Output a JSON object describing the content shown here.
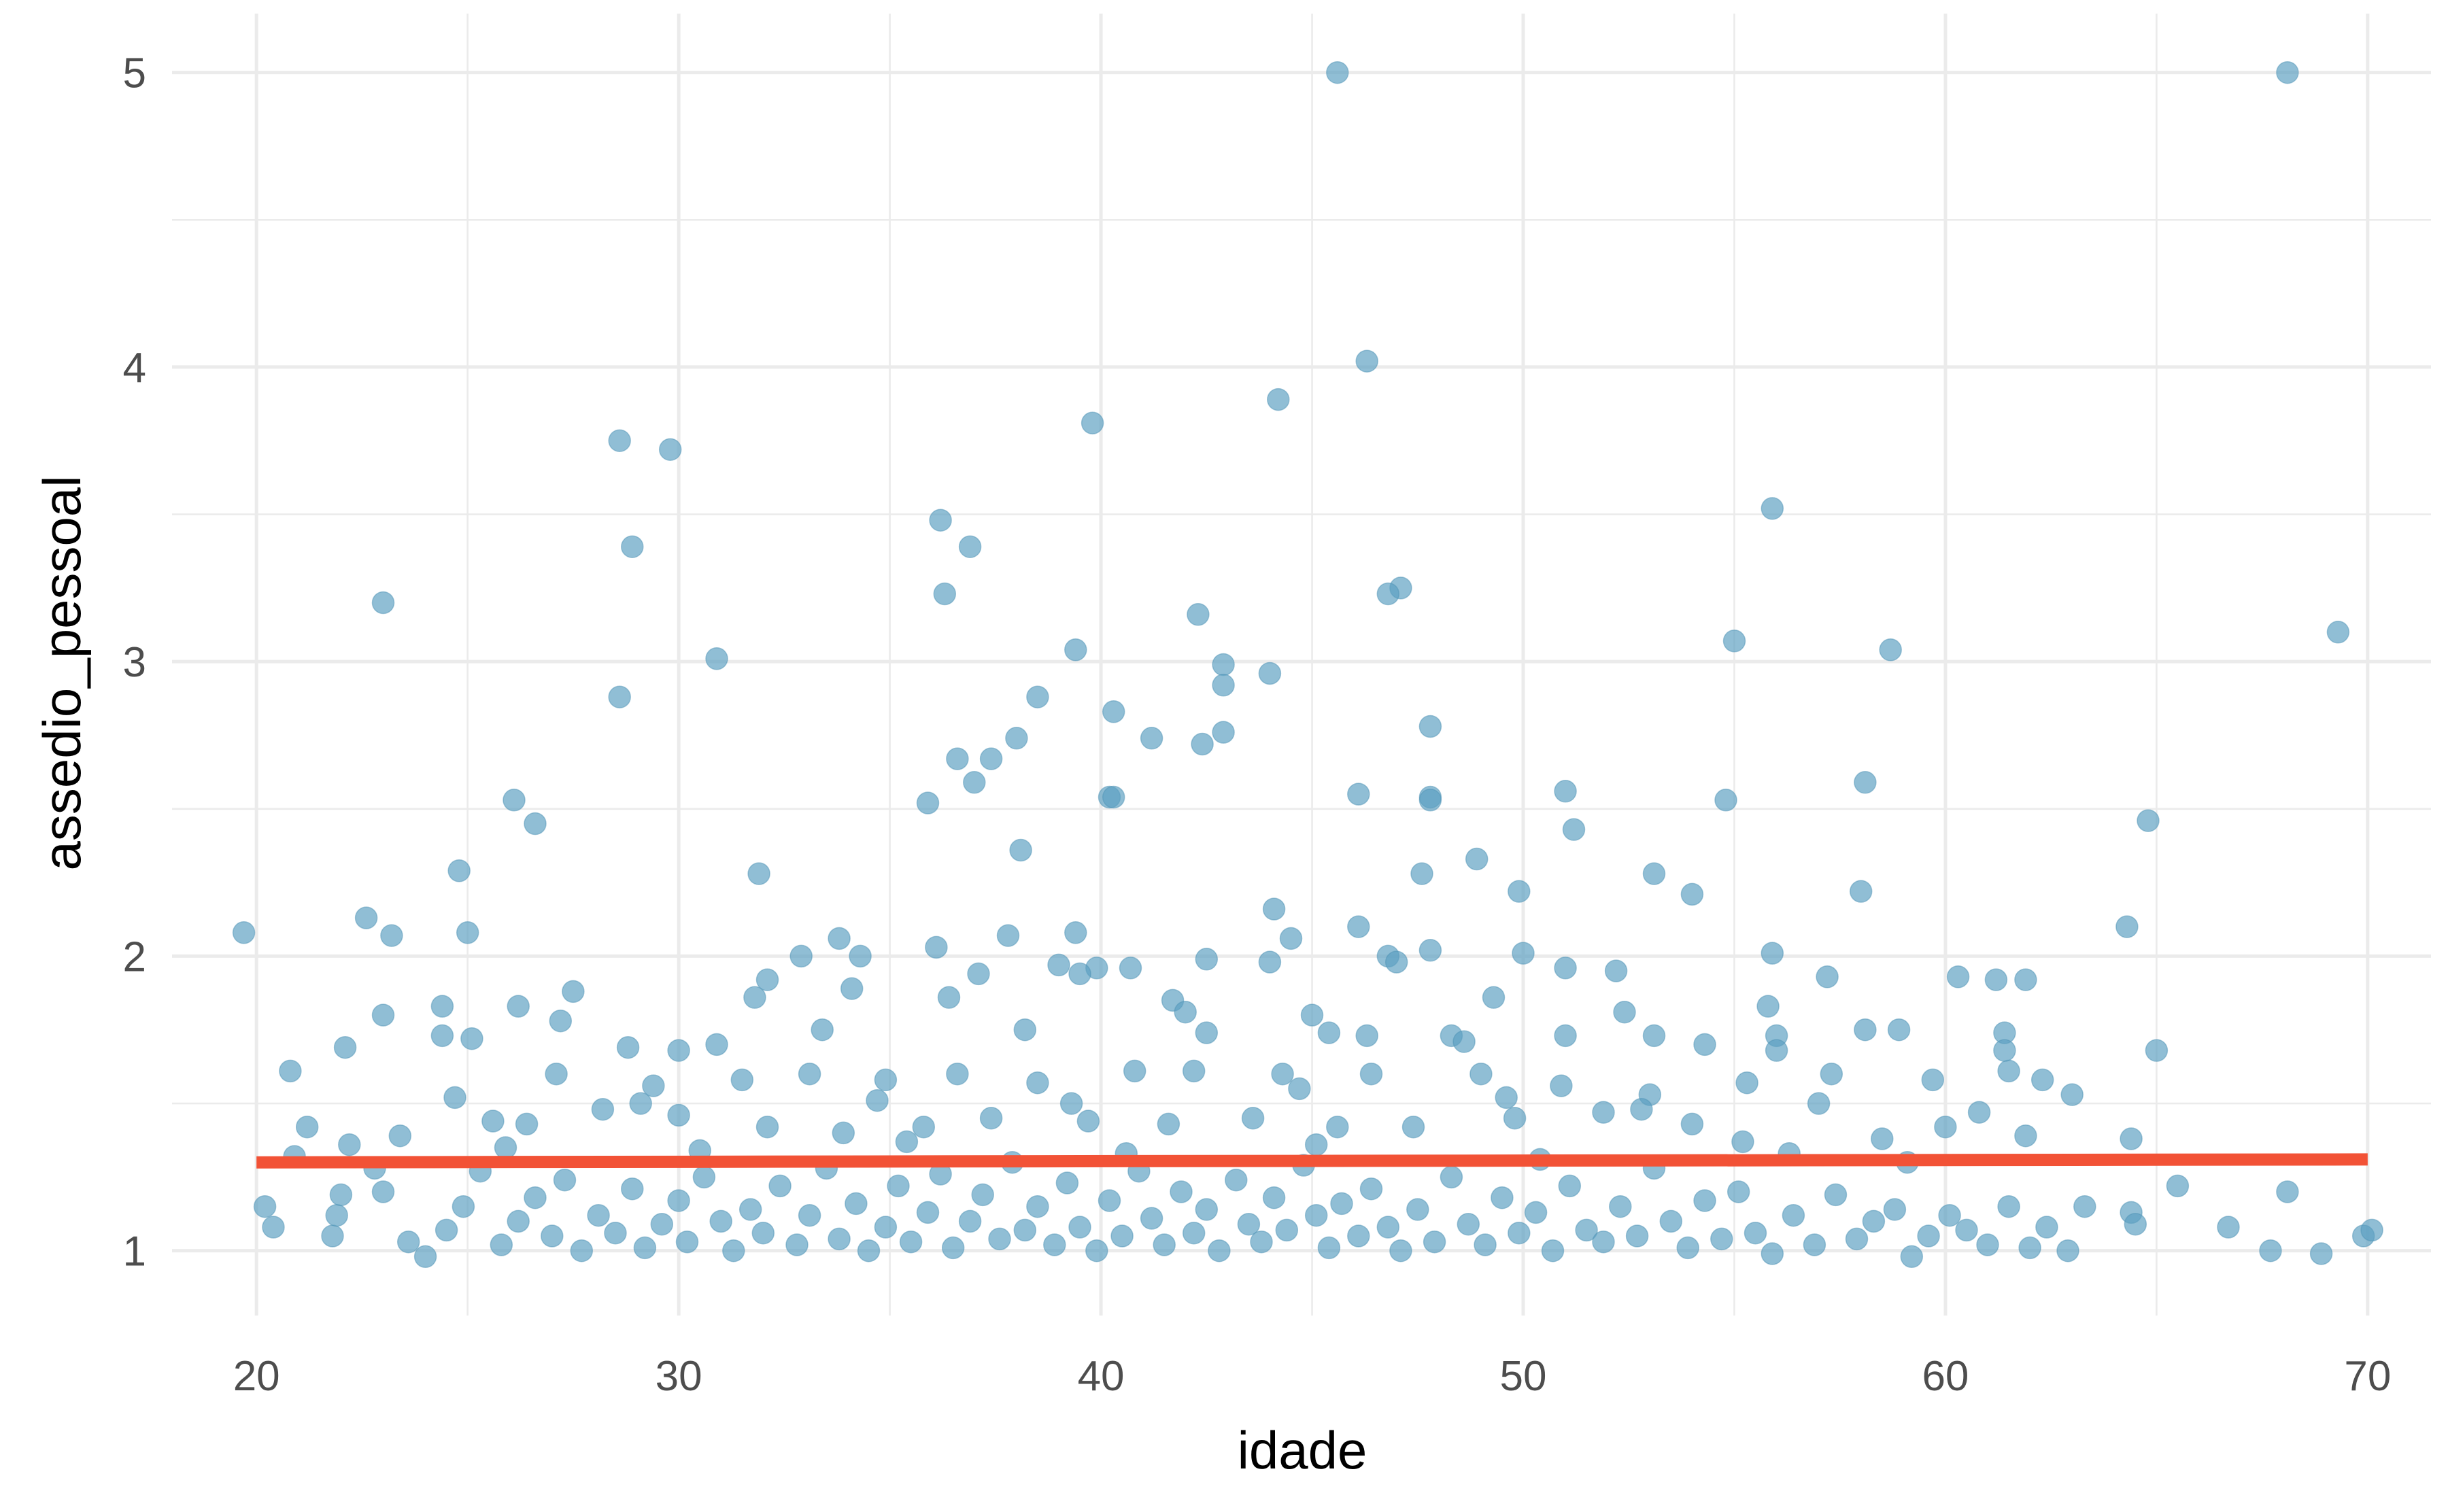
{
  "chart_data": {
    "type": "scatter",
    "xlabel": "idade",
    "ylabel": "assedio_pessoal",
    "xlim": [
      18,
      71.5
    ],
    "ylim": [
      0.78,
      5.2
    ],
    "x_ticks": [
      20,
      30,
      40,
      50,
      60,
      70
    ],
    "y_ticks": [
      1,
      2,
      3,
      4,
      5
    ],
    "grid": true,
    "point_color": "#5b9fc1",
    "trend_color": "#f25236",
    "trend_line": {
      "x": [
        20,
        70
      ],
      "y": [
        1.3,
        1.31
      ]
    },
    "series": [
      {
        "values": [
          [
            45.6,
            5.0
          ],
          [
            68.1,
            5.0
          ],
          [
            46.3,
            4.02
          ],
          [
            44.2,
            3.89
          ],
          [
            39.8,
            3.81
          ],
          [
            28.6,
            3.75
          ],
          [
            29.8,
            3.72
          ],
          [
            55.9,
            3.52
          ],
          [
            36.2,
            3.48
          ],
          [
            28.9,
            3.39
          ],
          [
            36.9,
            3.39
          ],
          [
            47.1,
            3.25
          ],
          [
            36.3,
            3.23
          ],
          [
            46.8,
            3.23
          ],
          [
            23.0,
            3.2
          ],
          [
            42.3,
            3.16
          ],
          [
            69.3,
            3.1
          ],
          [
            55.0,
            3.07
          ],
          [
            39.4,
            3.04
          ],
          [
            58.7,
            3.04
          ],
          [
            30.9,
            3.01
          ],
          [
            42.9,
            2.99
          ],
          [
            44.0,
            2.96
          ],
          [
            42.9,
            2.92
          ],
          [
            28.6,
            2.88
          ],
          [
            38.5,
            2.88
          ],
          [
            40.3,
            2.83
          ],
          [
            47.8,
            2.78
          ],
          [
            42.9,
            2.76
          ],
          [
            38.0,
            2.74
          ],
          [
            41.2,
            2.74
          ],
          [
            42.4,
            2.72
          ],
          [
            36.6,
            2.67
          ],
          [
            37.4,
            2.67
          ],
          [
            37.0,
            2.59
          ],
          [
            58.1,
            2.59
          ],
          [
            51.0,
            2.56
          ],
          [
            46.1,
            2.55
          ],
          [
            40.2,
            2.54
          ],
          [
            40.3,
            2.54
          ],
          [
            47.8,
            2.54
          ],
          [
            47.8,
            2.53
          ],
          [
            26.1,
            2.53
          ],
          [
            54.8,
            2.53
          ],
          [
            35.9,
            2.52
          ],
          [
            64.8,
            2.46
          ],
          [
            26.6,
            2.45
          ],
          [
            51.2,
            2.43
          ],
          [
            38.1,
            2.36
          ],
          [
            48.9,
            2.33
          ],
          [
            24.8,
            2.29
          ],
          [
            47.6,
            2.28
          ],
          [
            31.9,
            2.28
          ],
          [
            53.1,
            2.28
          ],
          [
            49.9,
            2.22
          ],
          [
            58.0,
            2.22
          ],
          [
            54.0,
            2.21
          ],
          [
            44.1,
            2.16
          ],
          [
            22.6,
            2.13
          ],
          [
            64.3,
            2.1
          ],
          [
            46.1,
            2.1
          ],
          [
            19.7,
            2.08
          ],
          [
            25.0,
            2.08
          ],
          [
            39.4,
            2.08
          ],
          [
            23.2,
            2.07
          ],
          [
            44.5,
            2.06
          ],
          [
            33.8,
            2.06
          ],
          [
            37.8,
            2.07
          ],
          [
            36.1,
            2.03
          ],
          [
            47.8,
            2.02
          ],
          [
            55.9,
            2.01
          ],
          [
            50.0,
            2.01
          ],
          [
            34.3,
            2.0
          ],
          [
            32.9,
            2.0
          ],
          [
            42.5,
            1.99
          ],
          [
            46.8,
            2.0
          ],
          [
            44.0,
            1.98
          ],
          [
            47.0,
            1.98
          ],
          [
            40.7,
            1.96
          ],
          [
            51.0,
            1.96
          ],
          [
            39.0,
            1.97
          ],
          [
            39.9,
            1.96
          ],
          [
            52.2,
            1.95
          ],
          [
            39.5,
            1.94
          ],
          [
            57.2,
            1.93
          ],
          [
            60.3,
            1.93
          ],
          [
            61.2,
            1.92
          ],
          [
            61.9,
            1.92
          ],
          [
            49.3,
            1.86
          ],
          [
            26.2,
            1.83
          ],
          [
            31.8,
            1.86
          ],
          [
            36.4,
            1.86
          ],
          [
            41.7,
            1.85
          ],
          [
            24.4,
            1.83
          ],
          [
            24.4,
            1.73
          ],
          [
            23.0,
            1.8
          ],
          [
            27.2,
            1.78
          ],
          [
            30.9,
            1.7
          ],
          [
            33.4,
            1.75
          ],
          [
            38.2,
            1.75
          ],
          [
            42.5,
            1.74
          ],
          [
            45.4,
            1.74
          ],
          [
            46.3,
            1.73
          ],
          [
            48.3,
            1.73
          ],
          [
            51.0,
            1.73
          ],
          [
            53.1,
            1.73
          ],
          [
            56.0,
            1.73
          ],
          [
            58.1,
            1.75
          ],
          [
            58.9,
            1.75
          ],
          [
            61.4,
            1.74
          ],
          [
            65.0,
            1.68
          ],
          [
            22.1,
            1.69
          ],
          [
            20.8,
            1.61
          ],
          [
            25.1,
            1.72
          ],
          [
            28.8,
            1.69
          ],
          [
            30.0,
            1.68
          ],
          [
            27.1,
            1.6
          ],
          [
            29.4,
            1.56
          ],
          [
            31.5,
            1.58
          ],
          [
            33.1,
            1.6
          ],
          [
            34.9,
            1.58
          ],
          [
            36.6,
            1.6
          ],
          [
            38.5,
            1.57
          ],
          [
            40.8,
            1.61
          ],
          [
            42.2,
            1.61
          ],
          [
            44.3,
            1.6
          ],
          [
            46.4,
            1.6
          ],
          [
            49.0,
            1.6
          ],
          [
            50.9,
            1.56
          ],
          [
            53.0,
            1.53
          ],
          [
            55.3,
            1.57
          ],
          [
            57.3,
            1.6
          ],
          [
            59.7,
            1.58
          ],
          [
            61.5,
            1.61
          ],
          [
            62.3,
            1.58
          ],
          [
            63.0,
            1.53
          ],
          [
            21.2,
            1.42
          ],
          [
            22.2,
            1.36
          ],
          [
            23.4,
            1.39
          ],
          [
            25.6,
            1.44
          ],
          [
            26.4,
            1.43
          ],
          [
            28.2,
            1.48
          ],
          [
            30.0,
            1.46
          ],
          [
            32.1,
            1.42
          ],
          [
            33.9,
            1.4
          ],
          [
            35.8,
            1.42
          ],
          [
            37.4,
            1.45
          ],
          [
            39.7,
            1.44
          ],
          [
            41.6,
            1.43
          ],
          [
            43.6,
            1.45
          ],
          [
            45.6,
            1.42
          ],
          [
            47.4,
            1.42
          ],
          [
            49.8,
            1.45
          ],
          [
            51.9,
            1.47
          ],
          [
            54.0,
            1.43
          ],
          [
            56.3,
            1.33
          ],
          [
            58.5,
            1.38
          ],
          [
            60.0,
            1.42
          ],
          [
            61.9,
            1.39
          ],
          [
            64.4,
            1.38
          ],
          [
            20.2,
            1.15
          ],
          [
            20.4,
            1.08
          ],
          [
            21.8,
            1.05
          ],
          [
            21.9,
            1.12
          ],
          [
            22.0,
            1.19
          ],
          [
            22.8,
            1.28
          ],
          [
            23.0,
            1.2
          ],
          [
            23.6,
            1.03
          ],
          [
            24.0,
            0.98
          ],
          [
            24.5,
            1.07
          ],
          [
            24.9,
            1.15
          ],
          [
            25.3,
            1.27
          ],
          [
            25.8,
            1.02
          ],
          [
            26.2,
            1.1
          ],
          [
            26.6,
            1.18
          ],
          [
            27.0,
            1.05
          ],
          [
            27.3,
            1.24
          ],
          [
            27.7,
            1.0
          ],
          [
            28.1,
            1.12
          ],
          [
            28.5,
            1.06
          ],
          [
            28.9,
            1.21
          ],
          [
            29.2,
            1.01
          ],
          [
            29.6,
            1.09
          ],
          [
            30.0,
            1.17
          ],
          [
            30.2,
            1.03
          ],
          [
            30.6,
            1.25
          ],
          [
            31.0,
            1.1
          ],
          [
            31.3,
            1.0
          ],
          [
            31.7,
            1.14
          ],
          [
            32.0,
            1.06
          ],
          [
            32.4,
            1.22
          ],
          [
            32.8,
            1.02
          ],
          [
            33.1,
            1.12
          ],
          [
            33.5,
            1.28
          ],
          [
            33.8,
            1.04
          ],
          [
            34.2,
            1.16
          ],
          [
            34.5,
            1.0
          ],
          [
            34.9,
            1.08
          ],
          [
            35.2,
            1.22
          ],
          [
            35.5,
            1.03
          ],
          [
            35.9,
            1.13
          ],
          [
            36.2,
            1.26
          ],
          [
            36.5,
            1.01
          ],
          [
            36.9,
            1.1
          ],
          [
            37.2,
            1.19
          ],
          [
            37.6,
            1.04
          ],
          [
            37.9,
            1.3
          ],
          [
            38.2,
            1.07
          ],
          [
            38.5,
            1.15
          ],
          [
            38.9,
            1.02
          ],
          [
            39.2,
            1.23
          ],
          [
            39.5,
            1.08
          ],
          [
            39.9,
            1.0
          ],
          [
            40.2,
            1.17
          ],
          [
            40.5,
            1.05
          ],
          [
            40.9,
            1.27
          ],
          [
            41.2,
            1.11
          ],
          [
            41.5,
            1.02
          ],
          [
            41.9,
            1.2
          ],
          [
            42.2,
            1.06
          ],
          [
            42.5,
            1.14
          ],
          [
            42.8,
            1.0
          ],
          [
            43.2,
            1.24
          ],
          [
            43.5,
            1.09
          ],
          [
            43.8,
            1.03
          ],
          [
            44.1,
            1.18
          ],
          [
            44.4,
            1.07
          ],
          [
            44.8,
            1.29
          ],
          [
            45.1,
            1.12
          ],
          [
            45.4,
            1.01
          ],
          [
            45.7,
            1.16
          ],
          [
            46.1,
            1.05
          ],
          [
            46.4,
            1.21
          ],
          [
            46.8,
            1.08
          ],
          [
            47.1,
            1.0
          ],
          [
            47.5,
            1.14
          ],
          [
            47.9,
            1.03
          ],
          [
            48.3,
            1.25
          ],
          [
            48.7,
            1.09
          ],
          [
            49.1,
            1.02
          ],
          [
            49.5,
            1.18
          ],
          [
            49.9,
            1.06
          ],
          [
            50.3,
            1.13
          ],
          [
            50.7,
            1.0
          ],
          [
            51.1,
            1.22
          ],
          [
            51.5,
            1.07
          ],
          [
            51.9,
            1.03
          ],
          [
            52.3,
            1.15
          ],
          [
            52.7,
            1.05
          ],
          [
            53.1,
            1.28
          ],
          [
            53.5,
            1.1
          ],
          [
            53.9,
            1.01
          ],
          [
            54.3,
            1.17
          ],
          [
            54.7,
            1.04
          ],
          [
            55.1,
            1.2
          ],
          [
            55.5,
            1.06
          ],
          [
            55.9,
            0.99
          ],
          [
            56.4,
            1.12
          ],
          [
            56.9,
            1.02
          ],
          [
            57.4,
            1.19
          ],
          [
            57.9,
            1.04
          ],
          [
            58.3,
            1.1
          ],
          [
            58.8,
            1.14
          ],
          [
            59.2,
            0.98
          ],
          [
            59.6,
            1.05
          ],
          [
            60.1,
            1.12
          ],
          [
            60.5,
            1.07
          ],
          [
            61.0,
            1.02
          ],
          [
            61.5,
            1.15
          ],
          [
            62.0,
            1.01
          ],
          [
            62.4,
            1.08
          ],
          [
            62.9,
            1.0
          ],
          [
            63.3,
            1.15
          ],
          [
            64.4,
            1.13
          ],
          [
            64.5,
            1.09
          ],
          [
            65.5,
            1.22
          ],
          [
            66.7,
            1.08
          ],
          [
            67.7,
            1.0
          ],
          [
            68.1,
            1.2
          ],
          [
            68.9,
            0.99
          ],
          [
            69.9,
            1.05
          ],
          [
            70.1,
            1.07
          ],
          [
            20.9,
            1.32
          ],
          [
            25.9,
            1.35
          ],
          [
            30.5,
            1.34
          ],
          [
            35.4,
            1.37
          ],
          [
            40.6,
            1.33
          ],
          [
            45.1,
            1.36
          ],
          [
            50.4,
            1.31
          ],
          [
            55.2,
            1.37
          ],
          [
            59.1,
            1.3
          ],
          [
            24.7,
            1.52
          ],
          [
            29.1,
            1.5
          ],
          [
            34.7,
            1.51
          ],
          [
            39.3,
            1.5
          ],
          [
            44.7,
            1.55
          ],
          [
            49.6,
            1.52
          ],
          [
            52.8,
            1.48
          ],
          [
            57.0,
            1.5
          ],
          [
            27.5,
            1.88
          ],
          [
            32.1,
            1.92
          ],
          [
            34.1,
            1.89
          ],
          [
            37.1,
            1.94
          ],
          [
            42.0,
            1.81
          ],
          [
            45.0,
            1.8
          ],
          [
            48.6,
            1.71
          ],
          [
            52.4,
            1.81
          ],
          [
            54.3,
            1.7
          ],
          [
            56.0,
            1.68
          ],
          [
            61.4,
            1.68
          ],
          [
            60.8,
            1.47
          ],
          [
            55.8,
            1.83
          ]
        ]
      }
    ]
  }
}
